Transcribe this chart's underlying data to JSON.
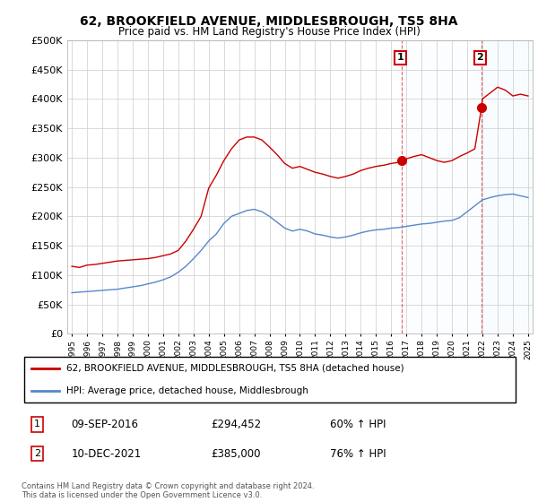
{
  "title": "62, BROOKFIELD AVENUE, MIDDLESBROUGH, TS5 8HA",
  "subtitle": "Price paid vs. HM Land Registry's House Price Index (HPI)",
  "legend_line1": "62, BROOKFIELD AVENUE, MIDDLESBROUGH, TS5 8HA (detached house)",
  "legend_line2": "HPI: Average price, detached house, Middlesbrough",
  "annotation1_date": "09-SEP-2016",
  "annotation1_price": "£294,452",
  "annotation1_hpi": "60% ↑ HPI",
  "annotation2_date": "10-DEC-2021",
  "annotation2_price": "£385,000",
  "annotation2_hpi": "76% ↑ HPI",
  "footer": "Contains HM Land Registry data © Crown copyright and database right 2024.\nThis data is licensed under the Open Government Licence v3.0.",
  "red_color": "#cc0000",
  "blue_color": "#5588cc",
  "dashed_color": "#dd6666",
  "bg_shade_color": "#ddeeff",
  "ylim": [
    0,
    500000
  ],
  "yticks": [
    0,
    50000,
    100000,
    150000,
    200000,
    250000,
    300000,
    350000,
    400000,
    450000,
    500000
  ],
  "sale1_x": 2016.69,
  "sale1_y": 294452,
  "sale2_x": 2021.94,
  "sale2_y": 385000,
  "xmin": 1994.7,
  "xmax": 2025.3,
  "red_years": [
    1995.0,
    1995.5,
    1996.0,
    1996.5,
    1997.0,
    1997.5,
    1998.0,
    1998.5,
    1999.0,
    1999.5,
    2000.0,
    2000.5,
    2001.0,
    2001.5,
    2002.0,
    2002.5,
    2003.0,
    2003.5,
    2004.0,
    2004.5,
    2005.0,
    2005.5,
    2006.0,
    2006.5,
    2007.0,
    2007.5,
    2008.0,
    2008.5,
    2009.0,
    2009.5,
    2010.0,
    2010.5,
    2011.0,
    2011.5,
    2012.0,
    2012.5,
    2013.0,
    2013.5,
    2014.0,
    2014.5,
    2015.0,
    2015.5,
    2016.0,
    2016.5,
    2016.69,
    2017.0,
    2017.5,
    2018.0,
    2018.5,
    2019.0,
    2019.5,
    2020.0,
    2020.5,
    2021.0,
    2021.5,
    2021.94,
    2022.0,
    2022.5,
    2023.0,
    2023.5,
    2024.0,
    2024.5,
    2025.0
  ],
  "red_vals": [
    115000,
    113000,
    117000,
    118000,
    120000,
    122000,
    124000,
    125000,
    126000,
    127000,
    128000,
    130000,
    133000,
    136000,
    142000,
    158000,
    178000,
    200000,
    248000,
    270000,
    295000,
    315000,
    330000,
    335000,
    335000,
    330000,
    318000,
    305000,
    290000,
    282000,
    285000,
    280000,
    275000,
    272000,
    268000,
    265000,
    268000,
    272000,
    278000,
    282000,
    285000,
    287000,
    290000,
    292000,
    294452,
    298000,
    302000,
    305000,
    300000,
    295000,
    292000,
    295000,
    302000,
    308000,
    315000,
    385000,
    400000,
    410000,
    420000,
    415000,
    405000,
    408000,
    405000
  ],
  "blue_years": [
    1995.0,
    1995.5,
    1996.0,
    1996.5,
    1997.0,
    1997.5,
    1998.0,
    1998.5,
    1999.0,
    1999.5,
    2000.0,
    2000.5,
    2001.0,
    2001.5,
    2002.0,
    2002.5,
    2003.0,
    2003.5,
    2004.0,
    2004.5,
    2005.0,
    2005.5,
    2006.0,
    2006.5,
    2007.0,
    2007.5,
    2008.0,
    2008.5,
    2009.0,
    2009.5,
    2010.0,
    2010.5,
    2011.0,
    2011.5,
    2012.0,
    2012.5,
    2013.0,
    2013.5,
    2014.0,
    2014.5,
    2015.0,
    2015.5,
    2016.0,
    2016.5,
    2017.0,
    2017.5,
    2018.0,
    2018.5,
    2019.0,
    2019.5,
    2020.0,
    2020.5,
    2021.0,
    2021.5,
    2022.0,
    2022.5,
    2023.0,
    2023.5,
    2024.0,
    2024.5,
    2025.0
  ],
  "blue_vals": [
    70000,
    71000,
    72000,
    73000,
    74000,
    75000,
    76000,
    78000,
    80000,
    82000,
    85000,
    88000,
    92000,
    97000,
    105000,
    115000,
    128000,
    142000,
    158000,
    170000,
    188000,
    200000,
    205000,
    210000,
    212000,
    208000,
    200000,
    190000,
    180000,
    175000,
    178000,
    175000,
    170000,
    168000,
    165000,
    163000,
    165000,
    168000,
    172000,
    175000,
    177000,
    178000,
    180000,
    181000,
    183000,
    185000,
    187000,
    188000,
    190000,
    192000,
    193000,
    198000,
    208000,
    218000,
    228000,
    232000,
    235000,
    237000,
    238000,
    235000,
    232000
  ]
}
